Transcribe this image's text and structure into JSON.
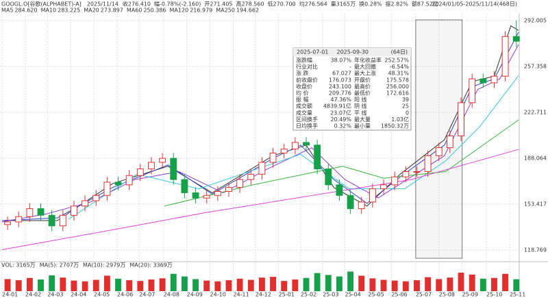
{
  "header": {
    "symbol": "GOOGL.O[谷歌(ALPHABET)-A]",
    "date": "2025/11/14",
    "quote": [
      "收276.410",
      "幅-0.78%(-2.160)",
      "开271.405",
      "高278.560",
      "低270.700",
      "均276.564",
      "量3165万",
      "换0.28%",
      "振2.82%",
      "额87.52亿"
    ],
    "range": "2024/01/05-2025/11/14(468日)"
  },
  "chart_data": {
    "type": "candlestick",
    "x": [
      5,
      15,
      25,
      35,
      45,
      55,
      65,
      75,
      85,
      95,
      105,
      115,
      125,
      135,
      145,
      155,
      165,
      175,
      185,
      195,
      205,
      215,
      225,
      235,
      245,
      255,
      265,
      275,
      285,
      295,
      305,
      315,
      325,
      335,
      345,
      355,
      365,
      375,
      385,
      395,
      405,
      415,
      425,
      435,
      445,
      455,
      465
    ],
    "open": [
      138,
      140,
      144,
      150,
      145,
      137,
      145,
      152,
      156,
      160,
      170,
      168,
      175,
      180,
      185,
      188,
      172,
      162,
      158,
      160,
      163,
      166,
      172,
      176,
      185,
      192,
      195,
      200,
      198,
      180,
      168,
      160,
      150,
      155,
      165,
      168,
      174,
      178,
      178,
      190,
      196,
      205,
      230,
      248,
      245,
      250,
      280
    ],
    "high": [
      144,
      148,
      154,
      154,
      149,
      149,
      156,
      160,
      164,
      174,
      174,
      179,
      184,
      189,
      192,
      192,
      176,
      166,
      164,
      167,
      170,
      176,
      180,
      189,
      196,
      199,
      204,
      204,
      202,
      184,
      172,
      164,
      159,
      169,
      172,
      178,
      182,
      182,
      194,
      200,
      209,
      234,
      252,
      252,
      254,
      284,
      292
    ],
    "low": [
      134,
      136,
      140,
      141,
      133,
      133,
      141,
      148,
      152,
      156,
      164,
      164,
      171,
      176,
      181,
      168,
      158,
      154,
      154,
      156,
      159,
      162,
      168,
      172,
      181,
      188,
      191,
      194,
      176,
      164,
      156,
      146,
      146,
      151,
      161,
      164,
      170,
      174,
      174,
      186,
      192,
      201,
      226,
      241,
      241,
      246,
      272
    ],
    "close": [
      140,
      144,
      150,
      145,
      137,
      145,
      152,
      156,
      160,
      170,
      168,
      175,
      180,
      185,
      188,
      172,
      162,
      158,
      160,
      163,
      166,
      172,
      176,
      185,
      192,
      195,
      200,
      198,
      180,
      168,
      160,
      150,
      155,
      165,
      168,
      174,
      178,
      178,
      190,
      196,
      205,
      230,
      248,
      245,
      250,
      280,
      276.41
    ],
    "volume": [
      3200,
      2900,
      3500,
      3100,
      4200,
      3600,
      2800,
      2600,
      3000,
      4100,
      3300,
      2900,
      2700,
      3100,
      3400,
      4600,
      3900,
      3200,
      2800,
      2600,
      2900,
      3300,
      3000,
      3600,
      3800,
      2700,
      3100,
      3500,
      4800,
      4300,
      3900,
      5200,
      4100,
      3400,
      3000,
      2800,
      2600,
      2900,
      3700,
      3200,
      3600,
      4900,
      4400,
      3300,
      3500,
      4600,
      3165
    ],
    "volume_ylim": [
      0,
      6000
    ],
    "series": [
      {
        "name": "MA5",
        "legend_value": "284.620",
        "color": "#333333",
        "x": [
          0,
          50,
          100,
          150,
          190,
          245,
          275,
          300,
          330,
          360,
          400,
          425,
          445,
          460,
          467
        ],
        "values": [
          141,
          141,
          169,
          182,
          162,
          190,
          198,
          166,
          152,
          176,
          202,
          246,
          250,
          288,
          284.6
        ]
      },
      {
        "name": "MA10",
        "legend_value": "283.225",
        "color": "#2a3fc4",
        "x": [
          0,
          50,
          100,
          150,
          190,
          245,
          270,
          300,
          330,
          360,
          400,
          425,
          445,
          467
        ],
        "values": [
          141,
          143,
          166,
          183,
          161,
          188,
          198,
          172,
          154,
          174,
          198,
          242,
          248,
          283.2
        ]
      },
      {
        "name": "MA20",
        "legend_value": "273.897",
        "color": "#8a3bd8",
        "x": [
          0,
          40,
          80,
          120,
          160,
          200,
          240,
          280,
          310,
          340,
          370,
          400,
          430,
          450,
          467
        ],
        "values": [
          140,
          146,
          155,
          172,
          178,
          162,
          180,
          196,
          172,
          158,
          174,
          190,
          240,
          248,
          273.9
        ]
      },
      {
        "name": "MA60",
        "legend_value": "250.386",
        "color": "#31c5e0",
        "x": [
          60,
          122,
          178,
          234,
          270,
          314,
          364,
          401,
          432,
          467
        ],
        "values": [
          142,
          176,
          165,
          181,
          191,
          165,
          165,
          186,
          212,
          250.39
        ]
      },
      {
        "name": "MA120",
        "legend_value": "216.979",
        "color": "#38b638",
        "x": [
          147,
          227,
          308,
          345,
          401,
          467
        ],
        "values": [
          152,
          168,
          182,
          173,
          178,
          216.98
        ]
      },
      {
        "name": "MA250",
        "legend_value": "194.662",
        "color": "#e040e0",
        "x": [
          0,
          100,
          184,
          370,
          467
        ],
        "values": [
          119,
          134,
          147,
          172,
          194.66
        ]
      }
    ],
    "xlim": [
      0,
      467
    ],
    "ylim": [
      116.18,
      297.18
    ],
    "yticks": [
      118.769,
      153.417,
      188.064,
      222.711,
      257.358,
      292.005
    ],
    "xticks": [
      {
        "value": 0,
        "label": "24-01"
      },
      {
        "value": 21,
        "label": "24-02"
      },
      {
        "value": 41,
        "label": "24-03"
      },
      {
        "value": 62,
        "label": "24-04"
      },
      {
        "value": 83,
        "label": "24-05"
      },
      {
        "value": 104,
        "label": "24-06"
      },
      {
        "value": 124,
        "label": "24-07"
      },
      {
        "value": 146,
        "label": "24-08"
      },
      {
        "value": 167,
        "label": "24-09"
      },
      {
        "value": 188,
        "label": "24-10"
      },
      {
        "value": 209,
        "label": "24-11"
      },
      {
        "value": 229,
        "label": "24-12"
      },
      {
        "value": 250,
        "label": "25-01"
      },
      {
        "value": 270,
        "label": "25-02"
      },
      {
        "value": 290,
        "label": "25-03"
      },
      {
        "value": 310,
        "label": "25-04"
      },
      {
        "value": 331,
        "label": "25-05"
      },
      {
        "value": 352,
        "label": "25-06"
      },
      {
        "value": 374,
        "label": "25-07"
      },
      {
        "value": 395,
        "label": "25-08"
      },
      {
        "value": 416,
        "label": "25-09"
      },
      {
        "value": 438,
        "label": "25-10"
      },
      {
        "value": 459,
        "label": "25-11"
      }
    ],
    "up_color": "#e0302e",
    "down_color": "#17a04a",
    "grid": true,
    "selection": [
      374,
      416
    ]
  },
  "volume_legend": [
    "VOL: 3165万",
    "MA(5): 2707万",
    "MA(10): 2979万",
    "MA(20): 3369万"
  ],
  "stats": {
    "start": "2025-07-01",
    "end": "2025-09-30",
    "days": "(64日)",
    "rows": [
      [
        "涨跌幅",
        "38.07%",
        "年化收益率",
        "252.57%"
      ],
      [
        "行业对比",
        "-",
        "最大回撤",
        "-6.54%"
      ],
      [
        "涨 跌",
        "67.027",
        "最大上涨",
        "48.31%"
      ],
      [
        "前收盘价",
        "176.073",
        "开盘价",
        "175.578"
      ],
      [
        "收盘价",
        "243.100",
        "最高价",
        "256.000"
      ],
      [
        "均 价",
        "209.776",
        "最低价",
        "172.616"
      ],
      [
        "振 幅",
        "47.36%",
        "阳 线",
        "39"
      ],
      [
        "成交额",
        "4839.91亿",
        "阴 线",
        "25"
      ],
      [
        "成交量",
        "23.07亿",
        "平 线",
        "0"
      ],
      [
        "区间换手",
        "20.49%",
        "最大量",
        "1.03亿"
      ],
      [
        "日均换手",
        "0.32%",
        "最小量",
        "1850.32万"
      ]
    ]
  }
}
